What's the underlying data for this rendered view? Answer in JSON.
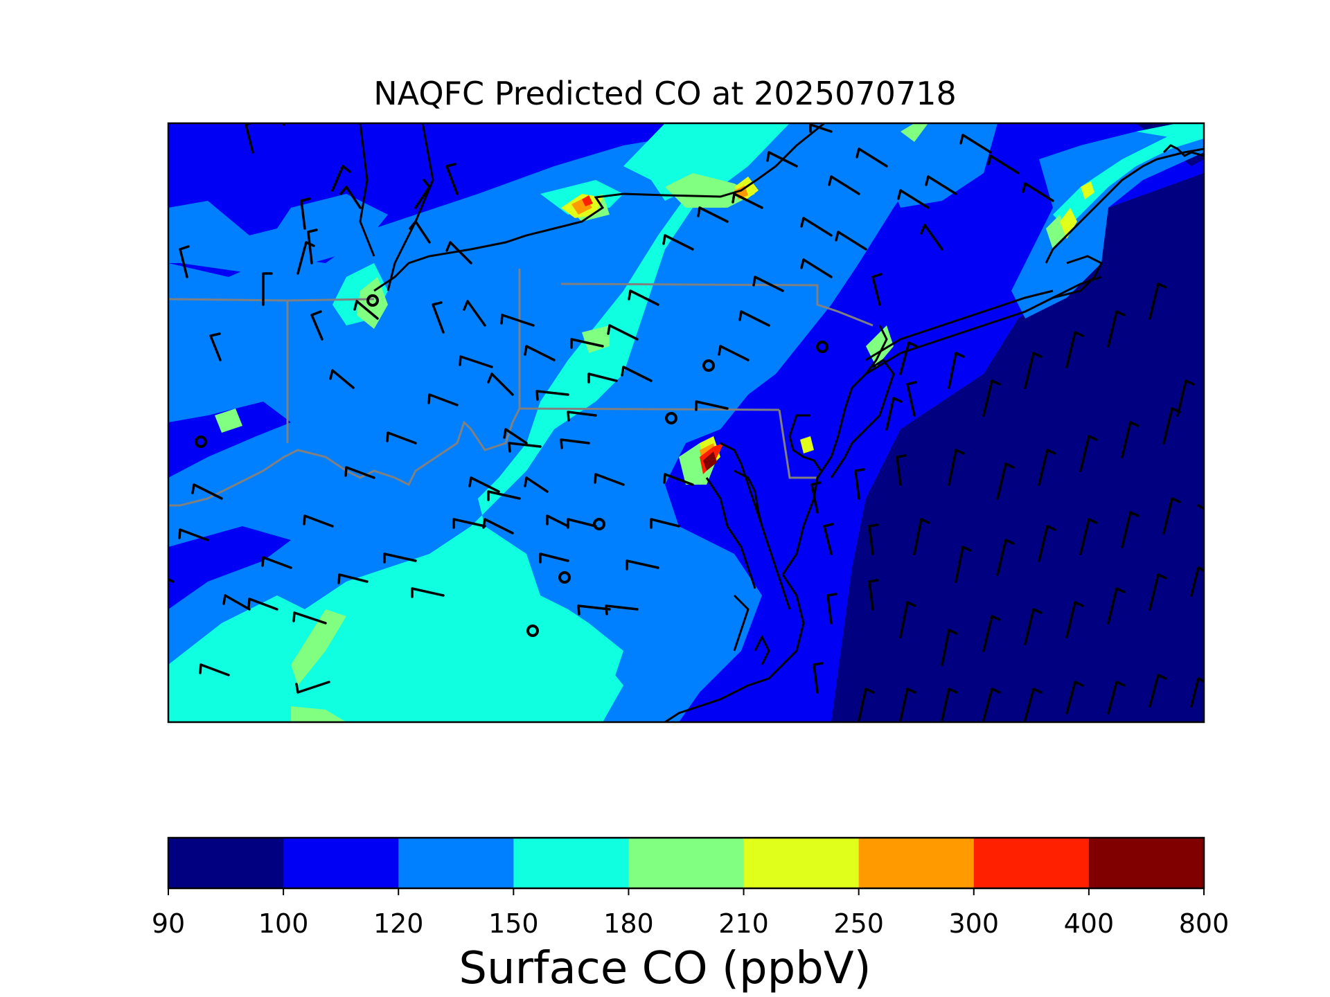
{
  "title": "NAQFC Predicted CO at 2025070718",
  "colorbar": {
    "label": "Surface CO (ppbV)",
    "ticks": [
      "90",
      "100",
      "120",
      "150",
      "180",
      "210",
      "250",
      "300",
      "400",
      "800"
    ],
    "colors": [
      "#000080",
      "#0000f5",
      "#0080ff",
      "#10ffe0",
      "#80ff80",
      "#e0ff1a",
      "#ff9a00",
      "#ff2000",
      "#800000"
    ]
  },
  "map": {
    "colors": {
      "border": "#808080",
      "coast": "#000000",
      "barb": "#000000",
      "frame": "#000000"
    }
  }
}
